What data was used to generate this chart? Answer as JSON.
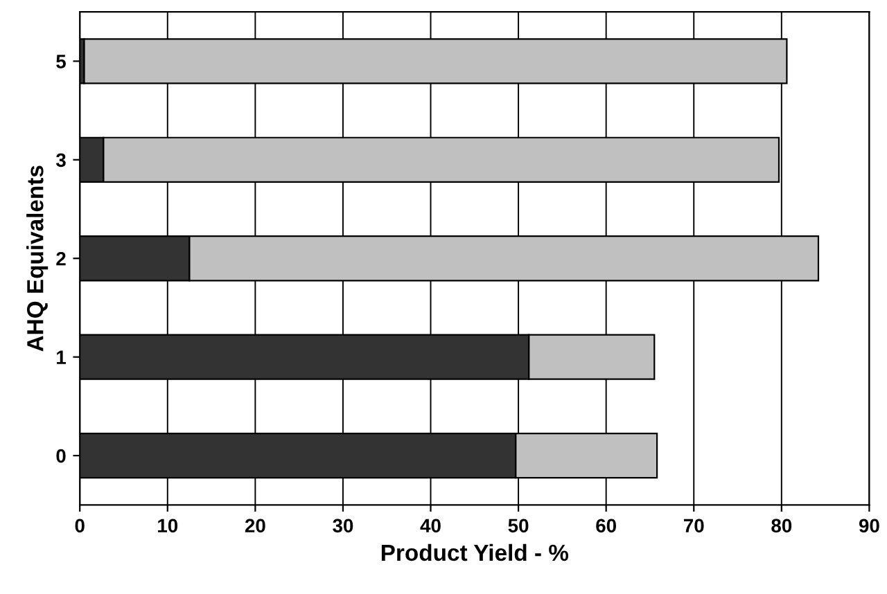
{
  "chart_data": {
    "type": "bar",
    "orientation": "horizontal",
    "stacked": true,
    "xlabel": "Product Yield - %",
    "ylabel": "AHQ Equivalents",
    "categories": [
      "5",
      "3",
      "2",
      "1",
      "0"
    ],
    "series": [
      {
        "color": "#333333",
        "values": [
          0.5,
          2.7,
          12.5,
          51.2,
          49.7
        ]
      },
      {
        "color": "#c0c0c0",
        "values": [
          80.1,
          77.0,
          71.7,
          14.3,
          16.1
        ]
      }
    ],
    "xlim": [
      0,
      90
    ],
    "xticks": [
      0,
      10,
      20,
      30,
      40,
      50,
      60,
      70,
      80,
      90
    ],
    "grid": "x",
    "legend": false
  }
}
